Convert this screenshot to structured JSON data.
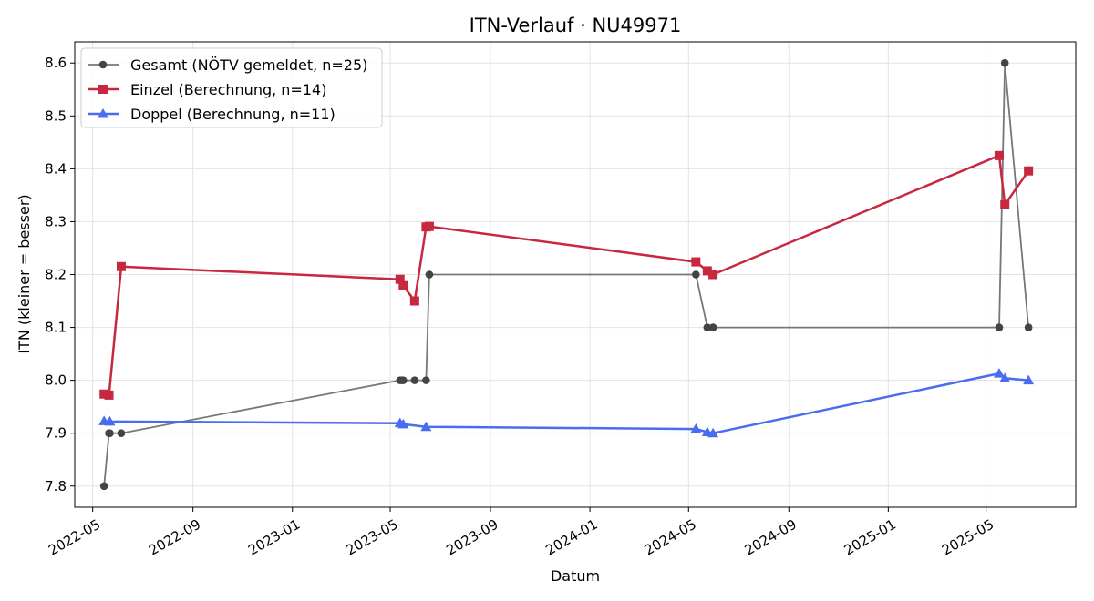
{
  "chart_data": {
    "type": "line",
    "title": "ITN-Verlauf · NU49971",
    "xlabel": "Datum",
    "ylabel": "ITN  (kleiner = besser)",
    "xlim": [
      "2022-04-09",
      "2025-08-19"
    ],
    "ylim": [
      7.76,
      8.64
    ],
    "x_ticks": [
      "2022-05",
      "2022-09",
      "2023-01",
      "2023-05",
      "2023-09",
      "2024-01",
      "2024-05",
      "2024-09",
      "2025-01",
      "2025-05"
    ],
    "y_ticks": [
      7.8,
      7.9,
      8.0,
      8.1,
      8.2,
      8.3,
      8.4,
      8.5,
      8.6
    ],
    "grid": true,
    "legend_position": "top-left",
    "series": [
      {
        "name": "Gesamt (NÖTV gemeldet, n=25)",
        "color": "#777777",
        "marker_color": "#444444",
        "marker": "circle",
        "points": [
          {
            "x": "2022-05-15",
            "y": 7.8
          },
          {
            "x": "2022-05-21",
            "y": 7.9
          },
          {
            "x": "2022-05-22",
            "y": 7.9
          },
          {
            "x": "2022-06-05",
            "y": 7.9
          },
          {
            "x": "2023-05-13",
            "y": 8.0
          },
          {
            "x": "2023-05-15",
            "y": 8.0
          },
          {
            "x": "2023-05-17",
            "y": 8.0
          },
          {
            "x": "2023-05-31",
            "y": 8.0
          },
          {
            "x": "2023-06-14",
            "y": 8.0
          },
          {
            "x": "2023-06-18",
            "y": 8.2
          },
          {
            "x": "2024-05-10",
            "y": 8.2
          },
          {
            "x": "2024-05-24",
            "y": 8.1
          },
          {
            "x": "2024-05-31",
            "y": 8.1
          },
          {
            "x": "2025-05-17",
            "y": 8.1
          },
          {
            "x": "2025-05-24",
            "y": 8.6
          },
          {
            "x": "2025-06-22",
            "y": 8.1
          }
        ]
      },
      {
        "name": "Einzel (Berechnung, n=14)",
        "color": "#c8283f",
        "marker_color": "#c8283f",
        "marker": "square",
        "points": [
          {
            "x": "2022-05-15",
            "y": 7.974
          },
          {
            "x": "2022-05-21",
            "y": 7.972
          },
          {
            "x": "2022-06-05",
            "y": 8.215
          },
          {
            "x": "2023-05-13",
            "y": 8.191
          },
          {
            "x": "2023-05-17",
            "y": 8.179
          },
          {
            "x": "2023-05-31",
            "y": 8.15
          },
          {
            "x": "2023-06-14",
            "y": 8.29
          },
          {
            "x": "2023-06-18",
            "y": 8.291
          },
          {
            "x": "2024-05-10",
            "y": 8.224
          },
          {
            "x": "2024-05-24",
            "y": 8.207
          },
          {
            "x": "2024-05-31",
            "y": 8.2
          },
          {
            "x": "2025-05-17",
            "y": 8.425
          },
          {
            "x": "2025-05-24",
            "y": 8.332
          },
          {
            "x": "2025-06-22",
            "y": 8.396
          }
        ]
      },
      {
        "name": "Doppel (Berechnung, n=11)",
        "color": "#4a6cf0",
        "marker_color": "#4a6cf0",
        "marker": "triangle",
        "points": [
          {
            "x": "2022-05-15",
            "y": 7.923
          },
          {
            "x": "2022-05-22",
            "y": 7.922
          },
          {
            "x": "2023-05-13",
            "y": 7.919
          },
          {
            "x": "2023-05-17",
            "y": 7.917
          },
          {
            "x": "2023-06-14",
            "y": 7.912
          },
          {
            "x": "2024-05-10",
            "y": 7.908
          },
          {
            "x": "2024-05-24",
            "y": 7.902
          },
          {
            "x": "2024-05-31",
            "y": 7.9
          },
          {
            "x": "2025-05-17",
            "y": 8.013
          },
          {
            "x": "2025-05-24",
            "y": 8.004
          },
          {
            "x": "2025-06-22",
            "y": 8.0
          }
        ]
      }
    ]
  }
}
